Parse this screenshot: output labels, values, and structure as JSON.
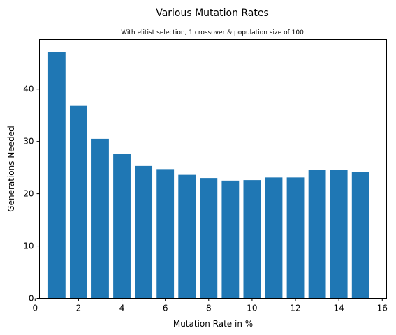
{
  "chart_data": {
    "type": "bar",
    "title": "Various Mutation Rates",
    "subtitle": "With elitist selection, 1 crossover & population size of 100",
    "xlabel": "Mutation Rate in %",
    "ylabel": "Generations Needed",
    "x": [
      1,
      2,
      3,
      4,
      5,
      6,
      7,
      8,
      9,
      10,
      11,
      12,
      13,
      14,
      15
    ],
    "values": [
      47.1,
      36.8,
      30.5,
      27.6,
      25.3,
      24.7,
      23.6,
      23.0,
      22.5,
      22.6,
      23.1,
      23.1,
      24.5,
      24.6,
      24.2
    ],
    "xlim": [
      0.2,
      16.2
    ],
    "ylim": [
      0,
      49.5
    ],
    "xticks": [
      0,
      2,
      4,
      6,
      8,
      10,
      12,
      14,
      16
    ],
    "yticks": [
      0,
      10,
      20,
      30,
      40
    ],
    "bar_color": "#1f77b4",
    "grid": false,
    "legend": "none"
  }
}
